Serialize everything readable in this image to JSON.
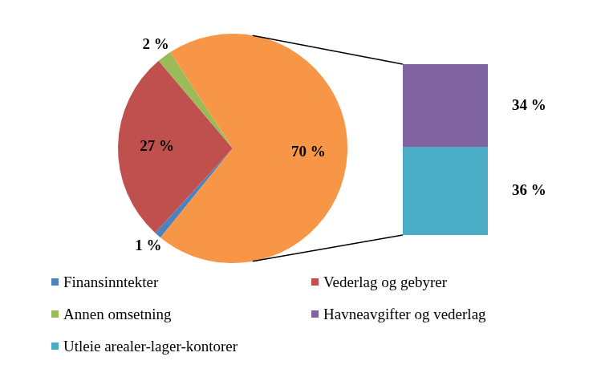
{
  "chart_data": [
    {
      "type": "pie",
      "categories": [
        "Finansinntekter",
        "Vederlag og gebyrer",
        "Annen omsetning",
        null
      ],
      "values": [
        1,
        27,
        2,
        70
      ],
      "value_labels": [
        "1 %",
        "27 %",
        "2 %",
        "70 %"
      ],
      "colors": [
        "#4f81bd",
        "#c0504d",
        "#9bbb59",
        "#f79646"
      ],
      "data_labels": true,
      "legend": "bottom"
    },
    {
      "type": "bar",
      "stacked": true,
      "categories": [
        null
      ],
      "series": [
        {
          "name": "Havneavgifter og vederlag",
          "color": "#8064a2",
          "values": [
            34
          ],
          "value_labels": [
            "34 %"
          ]
        },
        {
          "name": "Utleie arealer-lager-kontorer",
          "color": "#4bacc6",
          "values": [
            36
          ],
          "value_labels": [
            "36 %"
          ]
        }
      ],
      "data_labels": true,
      "tick_labels": false,
      "grid": false,
      "legend": "bottom"
    }
  ]
}
